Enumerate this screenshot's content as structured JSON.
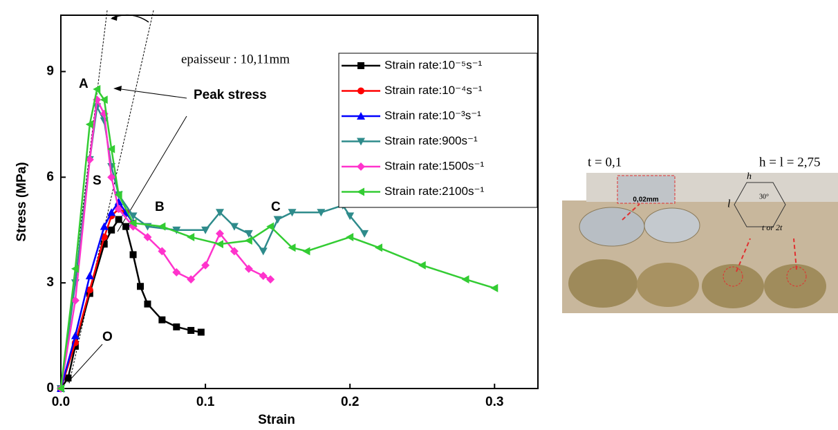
{
  "chart_data": {
    "type": "line",
    "xlabel": "Strain",
    "ylabel": "Stress (MPa)",
    "xlim": [
      0,
      0.33
    ],
    "ylim": [
      0,
      10.6
    ],
    "xticks": [
      {
        "value": 0,
        "label": "0.0"
      },
      0.1,
      0.2,
      0.3
    ],
    "yticks": [
      0,
      3,
      6,
      9
    ],
    "legend": "top-right",
    "series": [
      {
        "name": "Strain rate:10⁻⁵s⁻¹",
        "color": "#000000",
        "marker": "square",
        "x": [
          0,
          0.005,
          0.01,
          0.02,
          0.03,
          0.035,
          0.04,
          0.045,
          0.05,
          0.055,
          0.06,
          0.07,
          0.08,
          0.09,
          0.097
        ],
        "values": [
          0,
          0.3,
          1.2,
          2.7,
          4.1,
          4.5,
          4.8,
          4.6,
          3.8,
          2.9,
          2.4,
          1.95,
          1.75,
          1.65,
          1.6
        ]
      },
      {
        "name": "Strain rate:10⁻⁴s⁻¹",
        "color": "#ff0000",
        "marker": "circle",
        "x": [
          0,
          0.01,
          0.02,
          0.03,
          0.035,
          0.04,
          0.045,
          0.05
        ],
        "values": [
          0,
          1.3,
          2.8,
          4.3,
          4.9,
          5.1,
          5.0,
          4.7
        ]
      },
      {
        "name": "Strain rate:10⁻³s⁻¹",
        "color": "#0000ff",
        "marker": "triangle-up",
        "x": [
          0,
          0.01,
          0.02,
          0.03,
          0.035,
          0.04,
          0.045,
          0.05
        ],
        "values": [
          0,
          1.5,
          3.2,
          4.6,
          5.0,
          5.3,
          5.0,
          4.7
        ]
      },
      {
        "name": "Strain rate:900s⁻¹",
        "color": "#2e8b8b",
        "marker": "triangle-down",
        "x": [
          0,
          0.01,
          0.02,
          0.025,
          0.03,
          0.035,
          0.04,
          0.05,
          0.06,
          0.08,
          0.1,
          0.11,
          0.12,
          0.13,
          0.14,
          0.15,
          0.16,
          0.18,
          0.195,
          0.2,
          0.21
        ],
        "values": [
          0,
          3,
          6.5,
          8.0,
          7.6,
          6.3,
          5.5,
          4.9,
          4.6,
          4.5,
          4.5,
          5.0,
          4.6,
          4.4,
          3.9,
          4.8,
          5.0,
          5.0,
          5.2,
          4.9,
          4.4
        ]
      },
      {
        "name": "Strain rate:1500s⁻¹",
        "color": "#ff33cc",
        "marker": "diamond",
        "x": [
          0,
          0.01,
          0.02,
          0.025,
          0.03,
          0.035,
          0.04,
          0.05,
          0.06,
          0.07,
          0.08,
          0.09,
          0.1,
          0.11,
          0.12,
          0.13,
          0.14,
          0.145
        ],
        "values": [
          0,
          2.5,
          6.5,
          8.2,
          7.8,
          6.0,
          5.1,
          4.6,
          4.3,
          3.9,
          3.3,
          3.1,
          3.5,
          4.4,
          3.9,
          3.4,
          3.2,
          3.1
        ]
      },
      {
        "name": "Strain rate:2100s⁻¹",
        "color": "#33cc33",
        "marker": "triangle-left",
        "x": [
          0,
          0.01,
          0.02,
          0.025,
          0.03,
          0.035,
          0.04,
          0.05,
          0.07,
          0.09,
          0.11,
          0.13,
          0.145,
          0.16,
          0.17,
          0.2,
          0.22,
          0.25,
          0.28,
          0.3
        ],
        "values": [
          0,
          3.4,
          7.5,
          8.5,
          8.2,
          6.8,
          5.5,
          4.7,
          4.6,
          4.3,
          4.1,
          4.2,
          4.6,
          4.0,
          3.9,
          4.3,
          4.0,
          3.5,
          3.1,
          2.85
        ]
      }
    ],
    "annotations": [
      "epaisseur : 10,11mm",
      "Peak stress",
      "A",
      "S",
      "B",
      "C",
      "O"
    ]
  },
  "photo": {
    "thickness": "t = 0,1",
    "cell_size": "h = l = 2,75",
    "labels": [
      "0,02mm",
      "h",
      "30°",
      "l",
      "t or 2t"
    ]
  }
}
